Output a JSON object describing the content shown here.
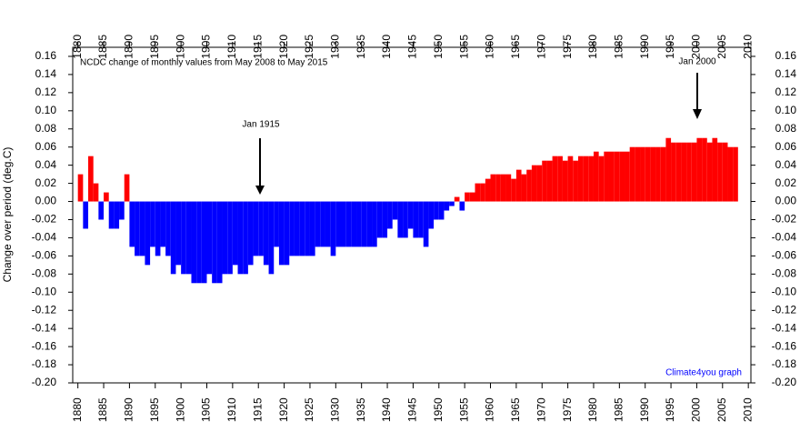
{
  "chart_data": {
    "type": "bar",
    "title": "NCDC change of monthly values from May 2008 to May 2015",
    "y_label": "Change over period (deg.C)",
    "annotations": [
      "Jan 1915",
      "Jan 2000"
    ],
    "credit": "Climate4you graph",
    "positive_color": "#ff0000",
    "negative_color": "#0000ff",
    "x": [
      1880,
      1881,
      1882,
      1883,
      1884,
      1885,
      1886,
      1887,
      1888,
      1889,
      1890,
      1891,
      1892,
      1893,
      1894,
      1895,
      1896,
      1897,
      1898,
      1899,
      1900,
      1901,
      1902,
      1903,
      1904,
      1905,
      1906,
      1907,
      1908,
      1909,
      1910,
      1911,
      1912,
      1913,
      1914,
      1915,
      1916,
      1917,
      1918,
      1919,
      1920,
      1921,
      1922,
      1923,
      1924,
      1925,
      1926,
      1927,
      1928,
      1929,
      1930,
      1931,
      1932,
      1933,
      1934,
      1935,
      1936,
      1937,
      1938,
      1939,
      1940,
      1941,
      1942,
      1943,
      1944,
      1945,
      1946,
      1947,
      1948,
      1949,
      1950,
      1951,
      1952,
      1953,
      1954,
      1955,
      1956,
      1957,
      1958,
      1959,
      1960,
      1961,
      1962,
      1963,
      1964,
      1965,
      1966,
      1967,
      1968,
      1969,
      1970,
      1971,
      1972,
      1973,
      1974,
      1975,
      1976,
      1977,
      1978,
      1979,
      1980,
      1981,
      1982,
      1983,
      1984,
      1985,
      1986,
      1987,
      1988,
      1989,
      1990,
      1991,
      1992,
      1993,
      1994,
      1995,
      1996,
      1997,
      1998,
      1999,
      2000,
      2001,
      2002,
      2003,
      2004,
      2005,
      2006,
      2007
    ],
    "values": [
      0.03,
      -0.03,
      0.05,
      0.02,
      -0.02,
      0.01,
      -0.03,
      -0.03,
      -0.02,
      0.03,
      -0.05,
      -0.06,
      -0.06,
      -0.07,
      -0.05,
      -0.06,
      -0.05,
      -0.06,
      -0.08,
      -0.07,
      -0.08,
      -0.08,
      -0.09,
      -0.09,
      -0.09,
      -0.08,
      -0.09,
      -0.09,
      -0.08,
      -0.08,
      -0.07,
      -0.08,
      -0.08,
      -0.07,
      -0.06,
      -0.06,
      -0.07,
      -0.08,
      -0.05,
      -0.07,
      -0.07,
      -0.06,
      -0.06,
      -0.06,
      -0.06,
      -0.06,
      -0.05,
      -0.05,
      -0.05,
      -0.06,
      -0.05,
      -0.05,
      -0.05,
      -0.05,
      -0.05,
      -0.05,
      -0.05,
      -0.05,
      -0.04,
      -0.04,
      -0.03,
      -0.02,
      -0.04,
      -0.04,
      -0.03,
      -0.04,
      -0.04,
      -0.05,
      -0.03,
      -0.02,
      -0.02,
      -0.01,
      -0.005,
      0.005,
      -0.01,
      0.01,
      0.01,
      0.02,
      0.02,
      0.025,
      0.03,
      0.03,
      0.03,
      0.03,
      0.025,
      0.035,
      0.03,
      0.035,
      0.04,
      0.04,
      0.045,
      0.045,
      0.05,
      0.05,
      0.045,
      0.05,
      0.045,
      0.05,
      0.05,
      0.05,
      0.055,
      0.05,
      0.055,
      0.055,
      0.055,
      0.055,
      0.055,
      0.06,
      0.06,
      0.06,
      0.06,
      0.06,
      0.06,
      0.06,
      0.07,
      0.065,
      0.065,
      0.065,
      0.065,
      0.065,
      0.07,
      0.07,
      0.065,
      0.07,
      0.065,
      0.065,
      0.06,
      0.06
    ],
    "xlim": [
      1879,
      2010.5
    ],
    "xticks": [
      1880,
      1885,
      1890,
      1895,
      1900,
      1905,
      1910,
      1915,
      1920,
      1925,
      1930,
      1935,
      1940,
      1945,
      1950,
      1955,
      1960,
      1965,
      1970,
      1975,
      1980,
      1985,
      1990,
      1995,
      2000,
      2005,
      2010
    ],
    "ylim": [
      -0.2,
      0.17
    ],
    "yticks": [
      {
        "value": 0.16,
        "label": "0.16"
      },
      {
        "value": 0.14,
        "label": "0.14"
      },
      {
        "value": 0.12,
        "label": "0.12"
      },
      {
        "value": 0.1,
        "label": "0.10"
      },
      {
        "value": 0.08,
        "label": "0.08"
      },
      {
        "value": 0.06,
        "label": "0.06"
      },
      {
        "value": 0.04,
        "label": "0.04"
      },
      {
        "value": 0.02,
        "label": "0.02"
      },
      {
        "value": 0,
        "label": "0.00"
      },
      {
        "value": -0.02,
        "label": "-0.02"
      },
      {
        "value": -0.04,
        "label": "-0.04"
      },
      {
        "value": -0.06,
        "label": "-0.06"
      },
      {
        "value": -0.08,
        "label": "-0.08"
      },
      {
        "value": -0.1,
        "label": "-0.10"
      },
      {
        "value": -0.12,
        "label": "-0.12"
      },
      {
        "value": -0.14,
        "label": "-0.14"
      },
      {
        "value": -0.16,
        "label": "-0.16"
      },
      {
        "value": -0.18,
        "label": "-0.18"
      },
      {
        "value": -0.2,
        "label": "-0.20"
      }
    ]
  }
}
